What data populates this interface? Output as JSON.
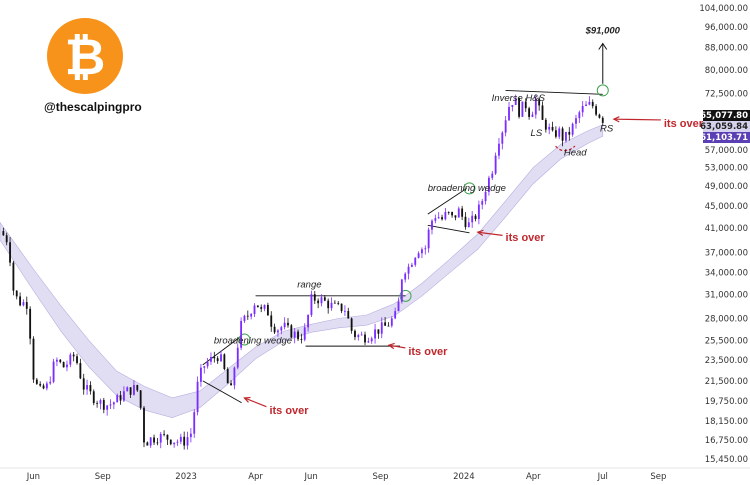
{
  "chart_data": {
    "type": "candlestick",
    "handle": "@thescalpingpro",
    "logo_glyph": "₿",
    "brand_color": "#f7931a",
    "up_color": "#7b2cff",
    "down_color": "#111111",
    "band_color": "#c9c2ea",
    "y_axis": {
      "scale": "log",
      "ylim": [
        15000,
        106000
      ],
      "ticks": [
        "104,000.00",
        "96,000.00",
        "88,000.00",
        "80,000.00",
        "72,500.00",
        "65,077.80",
        "57,000.00",
        "53,000.00",
        "49,000.00",
        "45,000.00",
        "41,000.00",
        "37,000.00",
        "34,000.00",
        "31,000.00",
        "28,000.00",
        "25,500.00",
        "23,500.00",
        "21,500.00",
        "19,750.00",
        "18,150.00",
        "16,750.00",
        "15,450.00"
      ],
      "tick_values": [
        104000,
        96000,
        88000,
        80000,
        72500,
        65077.8,
        57000,
        53000,
        49000,
        45000,
        41000,
        37000,
        34000,
        31000,
        28000,
        25500,
        23500,
        21500,
        19750,
        18150,
        16750,
        15450
      ]
    },
    "x_axis": {
      "labels": [
        "Jun",
        "Sep",
        "2023",
        "Apr",
        "Jun",
        "Sep",
        "2024",
        "Apr",
        "Jul",
        "Sep"
      ],
      "label_times": [
        2022.45,
        2022.7,
        2023.0,
        2023.25,
        2023.45,
        2023.7,
        2024.0,
        2024.25,
        2024.5,
        2024.7
      ],
      "xlim": [
        2022.33,
        2024.85
      ]
    },
    "price_labels": [
      {
        "text": "65,077.80",
        "value": 65077.8,
        "bg": "#111111",
        "fg": "#ffffff"
      },
      {
        "text": "63,059.84",
        "value": 63059.84,
        "bg": "#d6d1ec",
        "fg": "#222222"
      },
      {
        "text": "61,103.71",
        "value": 61103.71,
        "bg": "#5b3fb5",
        "fg": "#ffffff"
      }
    ],
    "patterns": [
      {
        "label": "broadening wedge",
        "at": [
          2023.1,
          25200
        ],
        "red": "its over",
        "red_at": [
          2023.3,
          18700
        ]
      },
      {
        "label": "range",
        "at": [
          2023.4,
          31900
        ],
        "red": "its over",
        "red_at": [
          2023.8,
          24000
        ]
      },
      {
        "label": "broadening wedge",
        "at": [
          2023.87,
          48000
        ],
        "red": "its over",
        "red_at": [
          2024.15,
          38800
        ]
      },
      {
        "label": "Inverse H&S",
        "at": [
          2024.1,
          70200
        ],
        "red": "its over",
        "red_at": [
          2024.72,
          62900
        ]
      }
    ],
    "hs_labels": [
      {
        "text": "LS",
        "at": [
          2024.24,
          60500
        ]
      },
      {
        "text": "Head",
        "at": [
          2024.36,
          55700
        ]
      },
      {
        "text": "RS",
        "at": [
          2024.49,
          61700
        ]
      }
    ],
    "target_label": "$91,000",
    "target_value": 91000,
    "close_series": [
      [
        2022.33,
        40500
      ],
      [
        2022.36,
        38800
      ],
      [
        2022.38,
        31000
      ],
      [
        2022.4,
        30000
      ],
      [
        2022.43,
        29800
      ],
      [
        2022.45,
        22000
      ],
      [
        2022.47,
        20500
      ],
      [
        2022.5,
        21000
      ],
      [
        2022.53,
        23500
      ],
      [
        2022.56,
        22800
      ],
      [
        2022.6,
        24000
      ],
      [
        2022.63,
        21000
      ],
      [
        2022.66,
        20200
      ],
      [
        2022.69,
        19600
      ],
      [
        2022.72,
        19400
      ],
      [
        2022.75,
        19800
      ],
      [
        2022.78,
        20500
      ],
      [
        2022.81,
        20800
      ],
      [
        2022.83,
        20600
      ],
      [
        2022.85,
        16500
      ],
      [
        2022.87,
        16800
      ],
      [
        2022.9,
        17000
      ],
      [
        2022.93,
        16900
      ],
      [
        2022.96,
        16700
      ],
      [
        2022.99,
        16600
      ],
      [
        2023.02,
        17300
      ],
      [
        2023.04,
        21000
      ],
      [
        2023.06,
        22800
      ],
      [
        2023.08,
        23300
      ],
      [
        2023.1,
        23700
      ],
      [
        2023.12,
        24000
      ],
      [
        2023.14,
        22200
      ],
      [
        2023.16,
        20300
      ],
      [
        2023.18,
        24100
      ],
      [
        2023.2,
        27500
      ],
      [
        2023.22,
        28200
      ],
      [
        2023.25,
        30200
      ],
      [
        2023.27,
        28800
      ],
      [
        2023.29,
        29200
      ],
      [
        2023.31,
        27200
      ],
      [
        2023.33,
        26800
      ],
      [
        2023.35,
        27100
      ],
      [
        2023.37,
        26500
      ],
      [
        2023.39,
        26200
      ],
      [
        2023.41,
        25800
      ],
      [
        2023.43,
        26700
      ],
      [
        2023.45,
        30300
      ],
      [
        2023.47,
        30500
      ],
      [
        2023.49,
        30200
      ],
      [
        2023.51,
        29800
      ],
      [
        2023.53,
        29400
      ],
      [
        2023.55,
        29200
      ],
      [
        2023.57,
        29300
      ],
      [
        2023.6,
        26200
      ],
      [
        2023.62,
        26000
      ],
      [
        2023.64,
        25900
      ],
      [
        2023.66,
        26100
      ],
      [
        2023.68,
        26500
      ],
      [
        2023.7,
        26800
      ],
      [
        2023.72,
        27100
      ],
      [
        2023.74,
        27800
      ],
      [
        2023.76,
        28500
      ],
      [
        2023.78,
        34500
      ],
      [
        2023.8,
        34700
      ],
      [
        2023.82,
        36500
      ],
      [
        2023.84,
        37800
      ],
      [
        2023.86,
        37500
      ],
      [
        2023.88,
        42000
      ],
      [
        2023.9,
        43500
      ],
      [
        2023.92,
        42500
      ],
      [
        2023.94,
        43700
      ],
      [
        2023.96,
        42600
      ],
      [
        2023.98,
        44200
      ],
      [
        2024.0,
        42500
      ],
      [
        2024.02,
        41500
      ],
      [
        2024.04,
        43000
      ],
      [
        2024.06,
        45000
      ],
      [
        2024.08,
        49000
      ],
      [
        2024.1,
        52000
      ],
      [
        2024.12,
        59000
      ],
      [
        2024.14,
        62500
      ],
      [
        2024.16,
        68500
      ],
      [
        2024.18,
        71000
      ],
      [
        2024.2,
        67000
      ],
      [
        2024.22,
        69500
      ],
      [
        2024.24,
        66000
      ],
      [
        2024.26,
        71000
      ],
      [
        2024.28,
        64500
      ],
      [
        2024.3,
        63000
      ],
      [
        2024.32,
        60500
      ],
      [
        2024.34,
        62000
      ],
      [
        2024.36,
        59500
      ],
      [
        2024.38,
        61500
      ],
      [
        2024.4,
        64000
      ],
      [
        2024.42,
        67500
      ],
      [
        2024.44,
        68500
      ],
      [
        2024.46,
        69200
      ],
      [
        2024.48,
        67000
      ],
      [
        2024.5,
        65077.8
      ]
    ],
    "band_series": [
      [
        2022.33,
        42000,
        39000
      ],
      [
        2022.45,
        34500,
        31500
      ],
      [
        2022.55,
        29500,
        26500
      ],
      [
        2022.65,
        25500,
        22800
      ],
      [
        2022.75,
        22400,
        20200
      ],
      [
        2022.85,
        21000,
        19000
      ],
      [
        2022.95,
        20000,
        18400
      ],
      [
        2023.05,
        20600,
        19200
      ],
      [
        2023.15,
        22600,
        21200
      ],
      [
        2023.25,
        24800,
        23600
      ],
      [
        2023.35,
        26500,
        25400
      ],
      [
        2023.45,
        27300,
        26400
      ],
      [
        2023.55,
        28000,
        26900
      ],
      [
        2023.65,
        28400,
        27200
      ],
      [
        2023.75,
        29800,
        28300
      ],
      [
        2023.85,
        32500,
        30800
      ],
      [
        2023.95,
        36000,
        34000
      ],
      [
        2024.05,
        40000,
        37500
      ],
      [
        2024.15,
        46000,
        43000
      ],
      [
        2024.25,
        53000,
        49500
      ],
      [
        2024.35,
        58500,
        55000
      ],
      [
        2024.45,
        62000,
        58800
      ],
      [
        2024.5,
        63500,
        60500
      ]
    ]
  }
}
